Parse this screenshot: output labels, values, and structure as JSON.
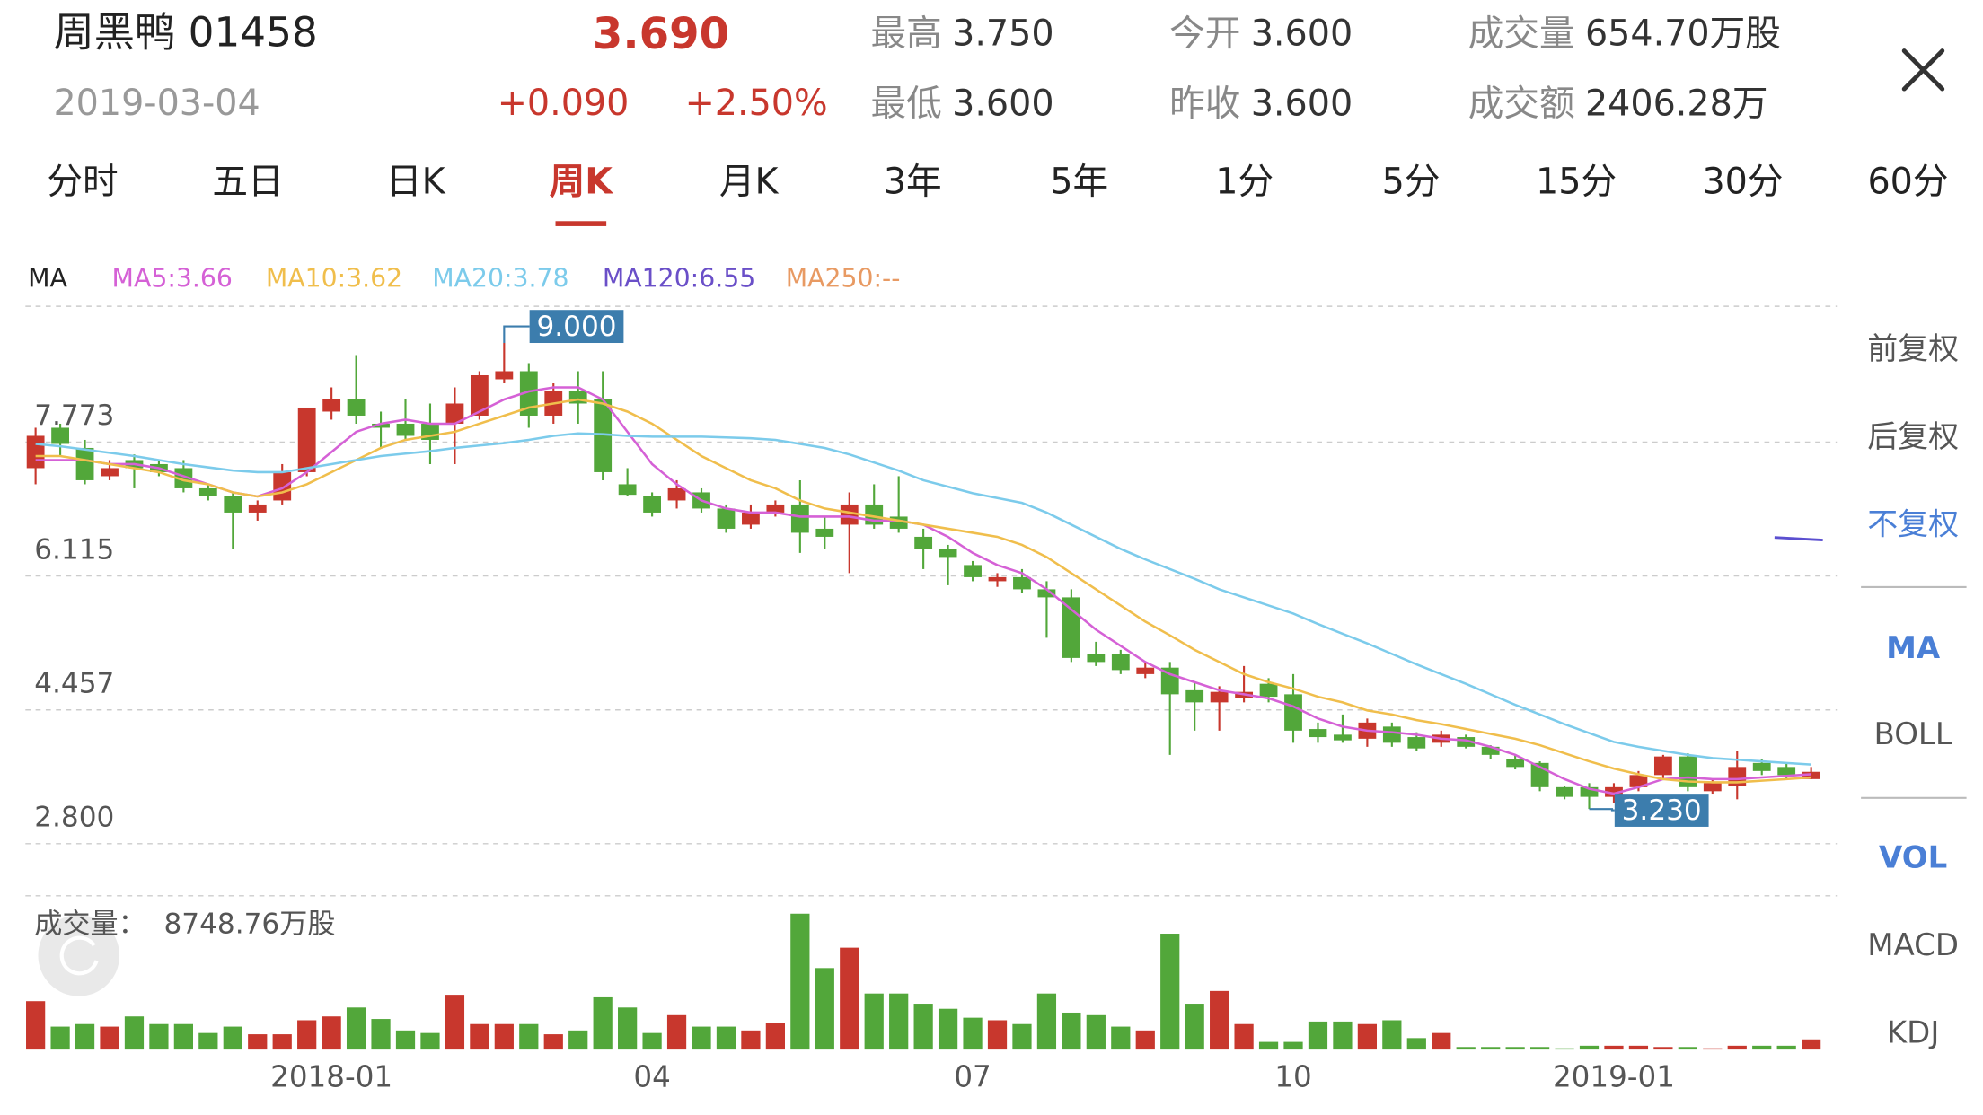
{
  "header": {
    "name": "周黑鸭 01458",
    "date": "2019-03-04",
    "price": "3.690",
    "change": "+0.090",
    "change_pct": "+2.50%",
    "stats": [
      {
        "label": "最高",
        "value": "3.750"
      },
      {
        "label": "今开",
        "value": "3.600"
      },
      {
        "label": "成交量",
        "value": "654.70万股"
      },
      {
        "label": "最低",
        "value": "3.600"
      },
      {
        "label": "昨收",
        "value": "3.600"
      },
      {
        "label": "成交额",
        "value": "2406.28万"
      }
    ]
  },
  "tabs": {
    "items": [
      "分时",
      "五日",
      "日K",
      "周K",
      "月K",
      "3年",
      "5年",
      "1分",
      "5分",
      "15分",
      "30分",
      "60分"
    ],
    "active": 3
  },
  "sidebar": {
    "adjust": [
      "前复权",
      "后复权",
      "不复权"
    ],
    "adjust_active": 2,
    "main": [
      "MA",
      "BOLL"
    ],
    "main_active": 0,
    "sub": [
      "VOL",
      "MACD",
      "KDJ"
    ],
    "sub_active": 0
  },
  "chart_data": {
    "type": "candlestick",
    "up_color": "#c8372d",
    "down_color": "#52a73a",
    "grid": true,
    "ylim": [
      2.8,
      9.431
    ],
    "yticks": [
      {
        "value": 2.8,
        "label": "2.800"
      },
      {
        "value": 4.457,
        "label": "4.457"
      },
      {
        "value": 6.115,
        "label": "6.115"
      },
      {
        "value": 7.773,
        "label": "7.773"
      }
    ],
    "categories": [
      null,
      null,
      null,
      null,
      null,
      null,
      null,
      null,
      null,
      null,
      null,
      null,
      "2018-01",
      null,
      null,
      null,
      null,
      null,
      null,
      null,
      null,
      null,
      null,
      null,
      null,
      "04",
      null,
      null,
      null,
      null,
      null,
      null,
      null,
      null,
      null,
      null,
      null,
      null,
      "07",
      null,
      null,
      null,
      null,
      null,
      null,
      null,
      null,
      null,
      null,
      null,
      null,
      "10",
      null,
      null,
      null,
      null,
      null,
      null,
      null,
      null,
      null,
      null,
      null,
      null,
      "2019-01",
      null,
      null,
      null,
      null,
      null,
      null,
      null,
      null
    ],
    "open": [
      7.45,
      7.95,
      7.7,
      7.35,
      7.55,
      7.5,
      7.45,
      7.2,
      7.1,
      6.9,
      7.05,
      7.4,
      8.15,
      8.3,
      8.0,
      8.0,
      8.0,
      8.0,
      8.1,
      8.55,
      8.65,
      8.1,
      8.4,
      8.3,
      7.25,
      7.1,
      7.05,
      7.15,
      6.95,
      6.75,
      6.9,
      7.0,
      6.7,
      6.75,
      7.0,
      6.85,
      6.6,
      6.45,
      6.25,
      6.05,
      6.1,
      5.95,
      5.85,
      5.15,
      5.15,
      4.9,
      4.98,
      4.7,
      4.55,
      4.6,
      4.78,
      4.65,
      4.22,
      4.15,
      4.1,
      4.25,
      4.12,
      4.05,
      4.12,
      4.0,
      3.85,
      3.8,
      3.5,
      3.5,
      3.38,
      3.5,
      3.65,
      3.88,
      3.45,
      3.52,
      3.8,
      3.75,
      3.6
    ],
    "high": [
      7.95,
      8.0,
      7.8,
      7.55,
      7.62,
      7.55,
      7.55,
      7.25,
      7.15,
      7.05,
      7.5,
      8.2,
      8.45,
      8.85,
      8.15,
      8.3,
      8.25,
      8.45,
      8.65,
      9.0,
      8.75,
      8.5,
      8.65,
      8.65,
      7.45,
      7.15,
      7.3,
      7.2,
      7.0,
      7.0,
      7.05,
      7.3,
      6.85,
      7.15,
      7.25,
      7.35,
      6.7,
      6.5,
      6.3,
      6.15,
      6.2,
      6.05,
      5.95,
      5.3,
      5.2,
      5.05,
      5.05,
      4.8,
      4.75,
      5.0,
      4.85,
      4.9,
      4.3,
      4.4,
      4.35,
      4.3,
      4.18,
      4.2,
      4.15,
      4.02,
      3.9,
      3.82,
      3.52,
      3.55,
      3.55,
      3.7,
      3.9,
      3.92,
      3.6,
      3.95,
      3.85,
      3.8,
      3.75
    ],
    "low": [
      7.25,
      7.6,
      7.25,
      7.3,
      7.2,
      7.35,
      7.15,
      7.05,
      6.45,
      6.8,
      7.0,
      7.35,
      8.05,
      8.0,
      7.7,
      7.8,
      7.5,
      7.5,
      8.05,
      8.5,
      7.95,
      8.0,
      8.0,
      7.3,
      7.1,
      6.85,
      6.95,
      6.9,
      6.65,
      6.7,
      6.85,
      6.4,
      6.45,
      6.15,
      6.7,
      6.65,
      6.2,
      6.0,
      6.05,
      5.98,
      5.9,
      5.35,
      5.05,
      5.0,
      4.9,
      4.85,
      3.9,
      4.2,
      4.2,
      4.55,
      4.55,
      4.05,
      4.05,
      4.05,
      4.0,
      4.0,
      3.95,
      4.0,
      3.98,
      3.85,
      3.72,
      3.45,
      3.35,
      3.23,
      3.3,
      3.45,
      3.6,
      3.45,
      3.42,
      3.35,
      3.65,
      3.6,
      3.6
    ],
    "close": [
      7.85,
      7.75,
      7.3,
      7.45,
      7.45,
      7.4,
      7.2,
      7.1,
      6.9,
      7.0,
      7.4,
      8.2,
      8.3,
      8.1,
      7.95,
      7.85,
      7.8,
      8.25,
      8.6,
      8.65,
      8.1,
      8.4,
      8.25,
      7.4,
      7.12,
      6.9,
      7.2,
      6.95,
      6.7,
      6.9,
      7.0,
      6.65,
      6.6,
      7.0,
      6.75,
      6.7,
      6.45,
      6.35,
      6.1,
      6.1,
      5.95,
      5.85,
      5.1,
      5.05,
      4.95,
      4.98,
      4.65,
      4.55,
      4.68,
      4.68,
      4.62,
      4.2,
      4.12,
      4.08,
      4.3,
      4.05,
      3.98,
      4.15,
      4.0,
      3.9,
      3.75,
      3.5,
      3.38,
      3.38,
      3.5,
      3.65,
      3.88,
      3.5,
      3.55,
      3.75,
      3.7,
      3.65,
      3.69
    ],
    "legend_title": "MA",
    "series": [
      {
        "name": "MA5:3.66",
        "color": "#d561d6",
        "values": [
          7.55,
          7.55,
          7.55,
          7.5,
          7.5,
          7.45,
          7.35,
          7.25,
          7.15,
          7.1,
          7.2,
          7.4,
          7.65,
          7.9,
          8.0,
          8.05,
          8.0,
          8.0,
          8.15,
          8.3,
          8.4,
          8.45,
          8.45,
          8.3,
          7.9,
          7.5,
          7.25,
          7.05,
          6.95,
          6.9,
          6.9,
          6.85,
          6.85,
          6.85,
          6.8,
          6.8,
          6.75,
          6.6,
          6.4,
          6.25,
          6.15,
          5.95,
          5.7,
          5.45,
          5.25,
          5.05,
          4.9,
          4.8,
          4.7,
          4.65,
          4.6,
          4.5,
          4.35,
          4.25,
          4.2,
          4.18,
          4.15,
          4.1,
          4.08,
          4.0,
          3.9,
          3.75,
          3.6,
          3.48,
          3.42,
          3.5,
          3.6,
          3.62,
          3.6,
          3.6,
          3.62,
          3.64,
          3.66
        ]
      },
      {
        "name": "MA10:3.62",
        "color": "#f0be4c",
        "values": [
          7.6,
          7.6,
          7.55,
          7.5,
          7.45,
          7.4,
          7.3,
          7.25,
          7.15,
          7.1,
          7.15,
          7.25,
          7.4,
          7.55,
          7.7,
          7.8,
          7.85,
          7.9,
          8.0,
          8.1,
          8.2,
          8.25,
          8.3,
          8.25,
          8.15,
          8.0,
          7.8,
          7.6,
          7.45,
          7.3,
          7.2,
          7.05,
          6.95,
          6.9,
          6.85,
          6.8,
          6.75,
          6.7,
          6.65,
          6.6,
          6.5,
          6.35,
          6.15,
          5.95,
          5.75,
          5.55,
          5.38,
          5.2,
          5.05,
          4.9,
          4.8,
          4.72,
          4.62,
          4.55,
          4.45,
          4.4,
          4.33,
          4.28,
          4.22,
          4.16,
          4.1,
          4.02,
          3.92,
          3.82,
          3.73,
          3.66,
          3.6,
          3.57,
          3.56,
          3.56,
          3.58,
          3.6,
          3.62
        ]
      },
      {
        "name": "MA20:3.78",
        "color": "#7ccbeb",
        "values": [
          7.75,
          7.72,
          7.68,
          7.64,
          7.6,
          7.55,
          7.5,
          7.46,
          7.42,
          7.4,
          7.4,
          7.45,
          7.5,
          7.55,
          7.6,
          7.63,
          7.66,
          7.7,
          7.73,
          7.76,
          7.8,
          7.85,
          7.88,
          7.87,
          7.85,
          7.84,
          7.84,
          7.84,
          7.83,
          7.82,
          7.8,
          7.75,
          7.7,
          7.62,
          7.52,
          7.42,
          7.3,
          7.22,
          7.14,
          7.08,
          7.02,
          6.9,
          6.75,
          6.6,
          6.45,
          6.32,
          6.2,
          6.08,
          5.95,
          5.85,
          5.75,
          5.65,
          5.52,
          5.4,
          5.28,
          5.15,
          5.02,
          4.9,
          4.78,
          4.65,
          4.52,
          4.4,
          4.28,
          4.17,
          4.06,
          4.0,
          3.95,
          3.9,
          3.86,
          3.84,
          3.82,
          3.8,
          3.78
        ]
      },
      {
        "name": "MA120:6.55",
        "color": "#6a4fc8"
      },
      {
        "name": "MA250:--",
        "color": "#e89a63"
      }
    ],
    "max_marker": {
      "value": 9,
      "label": "9.000"
    },
    "min_marker": {
      "value": 3.23,
      "label": "3.230"
    },
    "volume": {
      "title": "成交量：  8748.76万股",
      "ylim": [
        0,
        9900
      ],
      "values": [
        3116,
        1476,
        1640,
        1476,
        2132,
        1640,
        1640,
        1066,
        1476,
        984,
        984,
        1886,
        2132,
        2706,
        1968,
        1230,
        1066,
        3526,
        1640,
        1640,
        1640,
        984,
        1230,
        3362,
        2706,
        1066,
        2214,
        1476,
        1476,
        1230,
        1722,
        8748.76,
        5248,
        6560,
        3608,
        3608,
        2952,
        2624,
        2050,
        1886,
        1640,
        3608,
        2378,
        2214,
        1476,
        1230,
        7462,
        2952,
        3772,
        1640,
        492,
        492,
        1804,
        1804,
        1640,
        1886,
        738,
        1066,
        164,
        164,
        164,
        164,
        82,
        246,
        246,
        246,
        164,
        164,
        82,
        246,
        246,
        246,
        654.7
      ]
    }
  }
}
